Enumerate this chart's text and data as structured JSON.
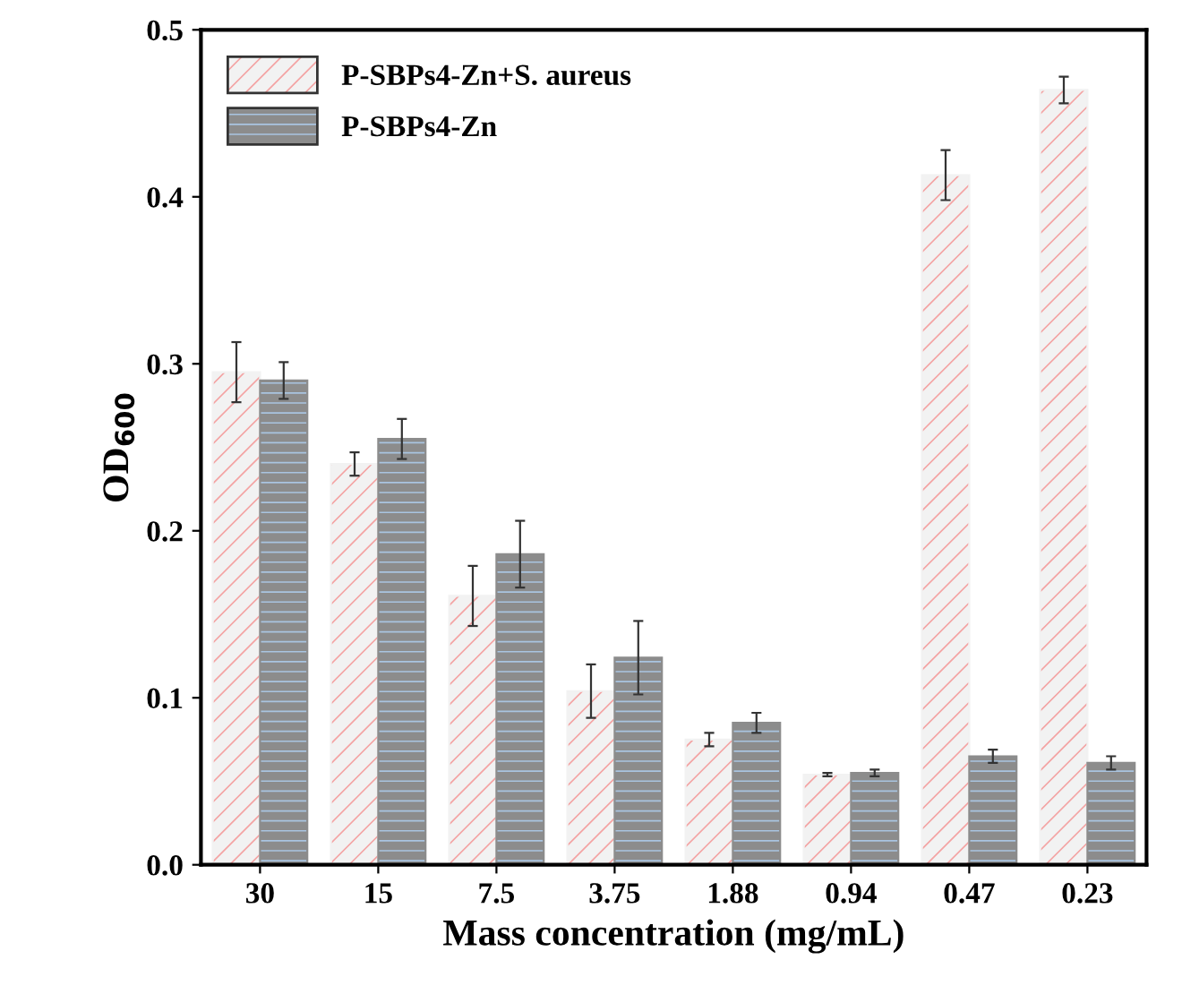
{
  "chart_data": {
    "type": "bar",
    "xlabel": "Mass concentration (mg/mL)",
    "ylabel": "OD$_{600}$",
    "categories": [
      "30",
      "15",
      "7.5",
      "3.75",
      "1.88",
      "0.94",
      "0.47",
      "0.23"
    ],
    "series": [
      {
        "name": "P-SBPs4-Zn+S. aureus",
        "color": "#f2f2f2",
        "values": [
          0.295,
          0.24,
          0.161,
          0.104,
          0.075,
          0.054,
          0.413,
          0.464
        ],
        "errors": [
          0.018,
          0.007,
          0.018,
          0.016,
          0.004,
          0.001,
          0.015,
          0.008
        ]
      },
      {
        "name": "P-SBPs4-Zn",
        "color": "#8c8c8c",
        "values": [
          0.29,
          0.255,
          0.186,
          0.124,
          0.085,
          0.055,
          0.065,
          0.061
        ],
        "errors": [
          0.011,
          0.012,
          0.02,
          0.022,
          0.006,
          0.002,
          0.004,
          0.004
        ]
      }
    ],
    "ylim": [
      0,
      0.5
    ],
    "yticks": [
      {
        "value": 0,
        "label": "0.0"
      },
      0.1,
      0.2,
      0.3,
      0.4,
      0.5
    ],
    "legend": "top left",
    "grid": false
  }
}
